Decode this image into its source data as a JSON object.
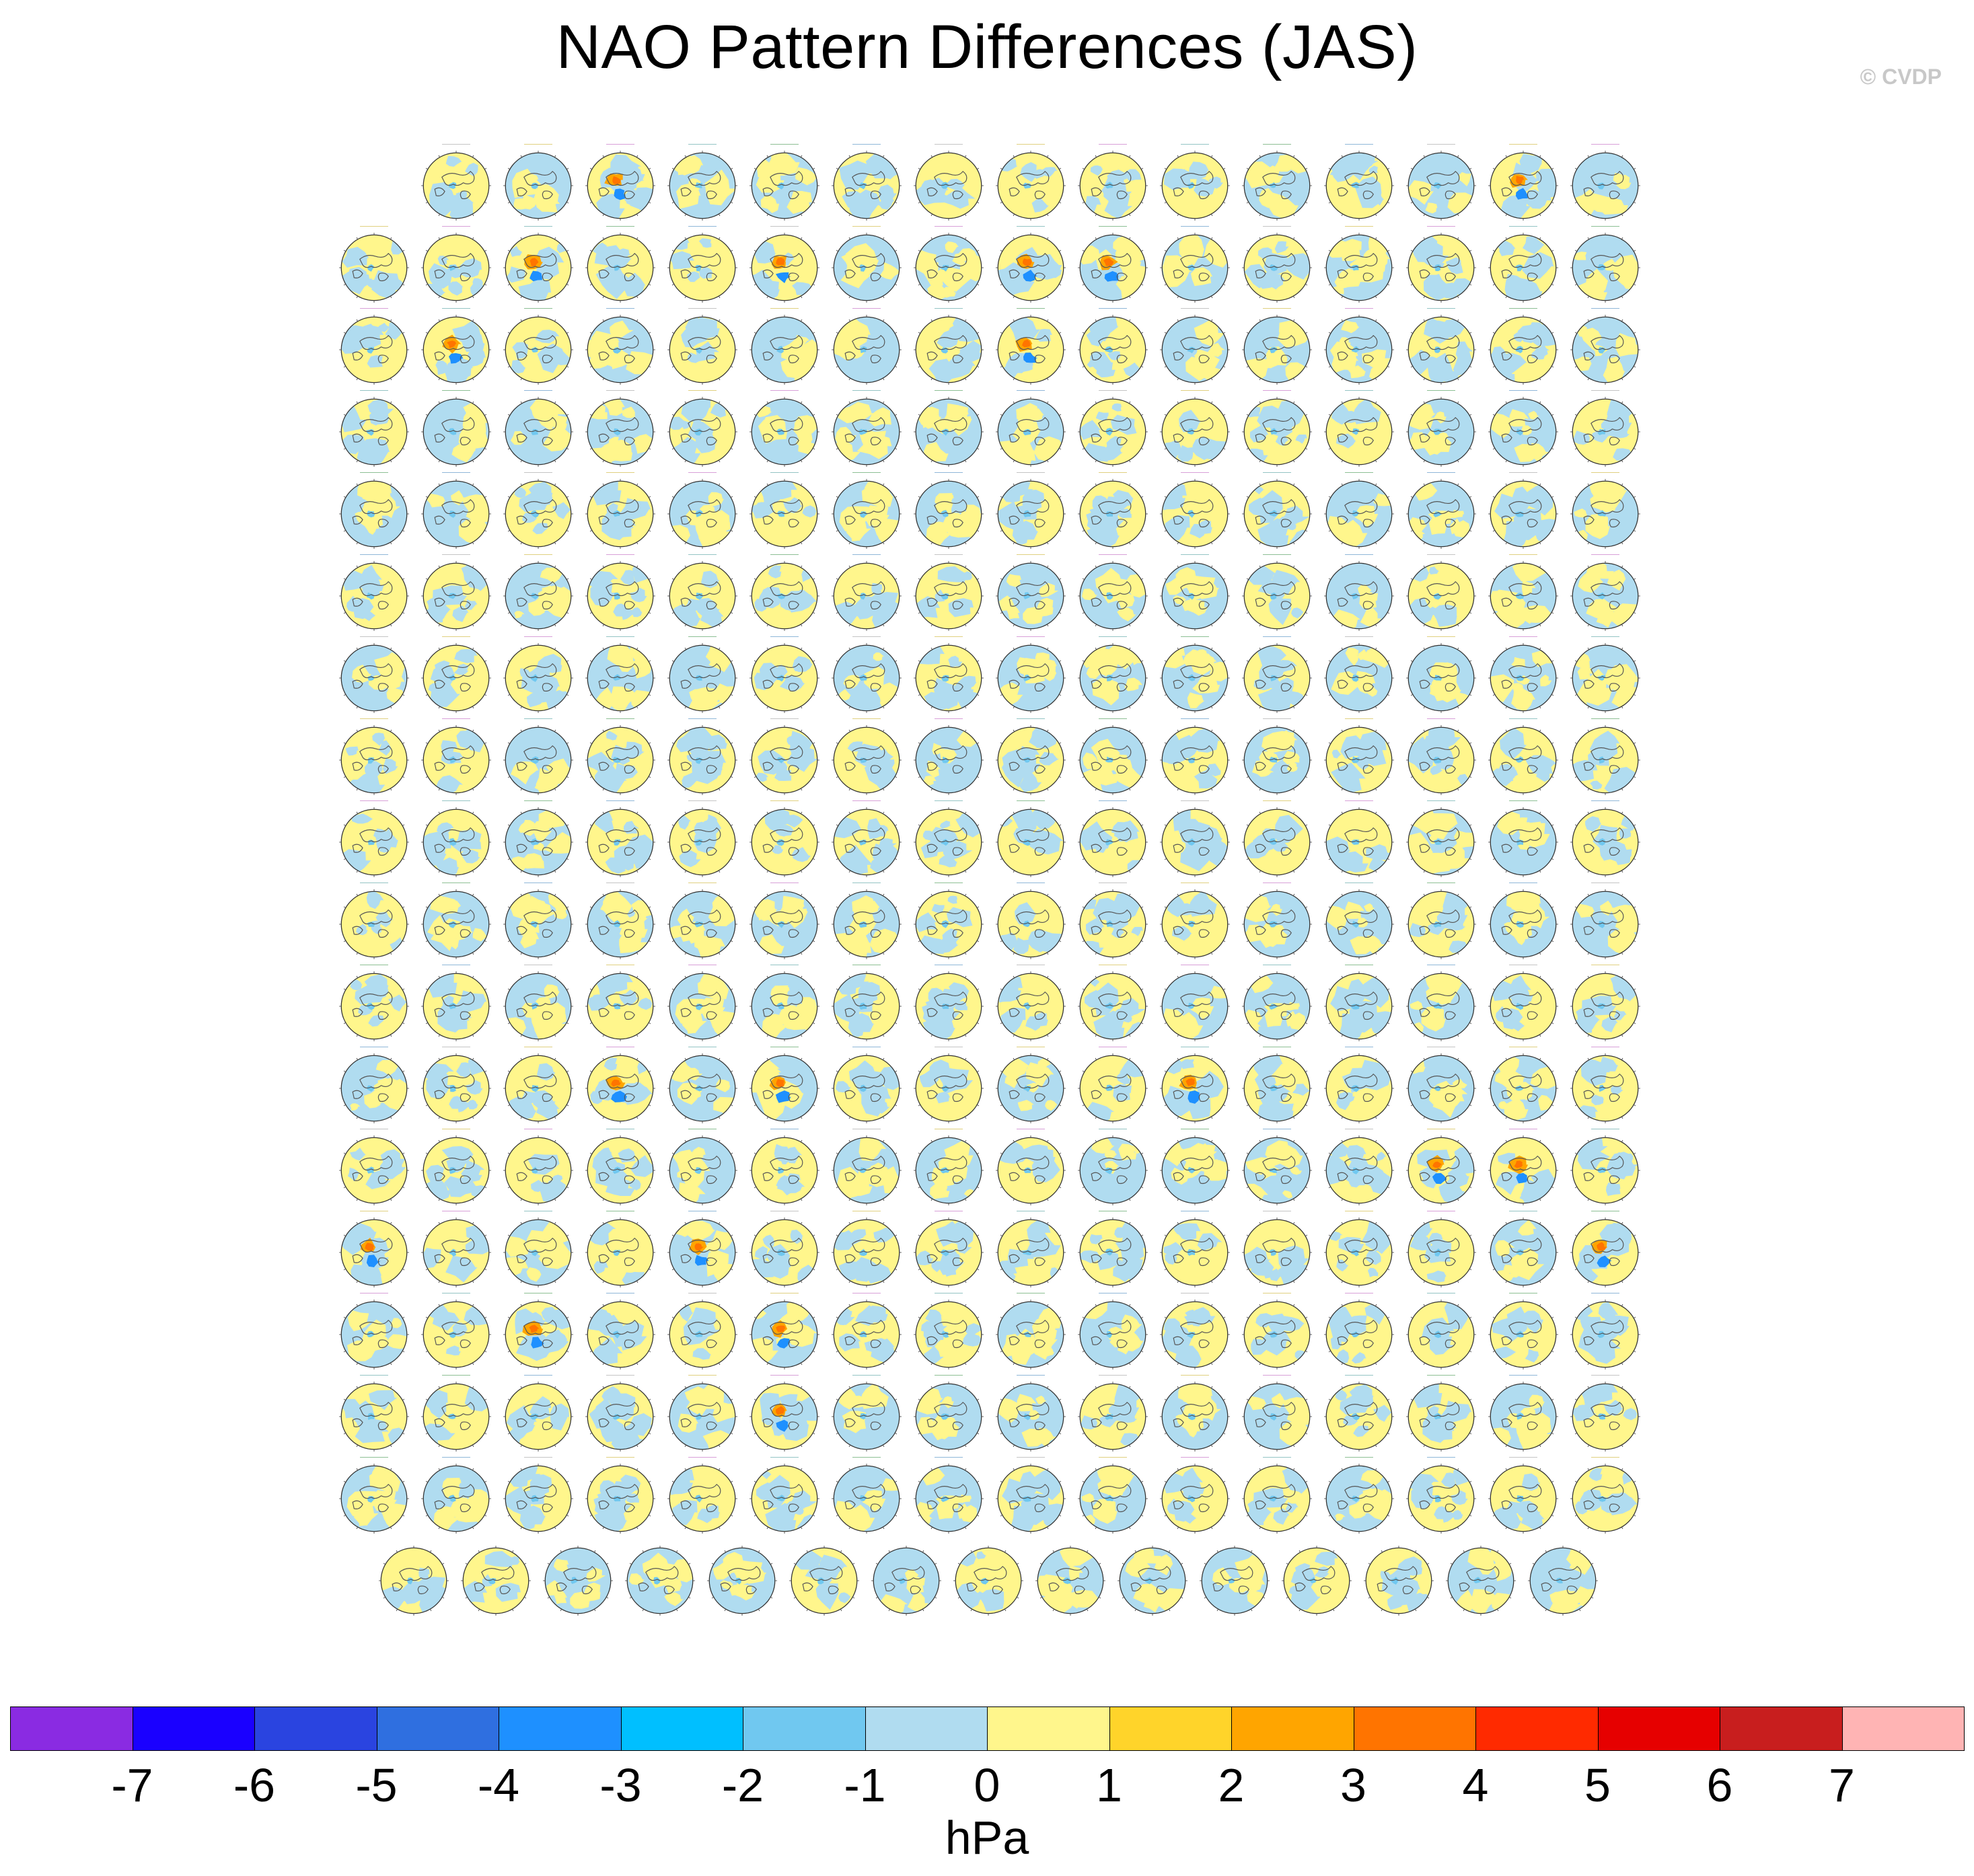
{
  "title": "NAO Pattern Differences (JAS)",
  "copyright": "© CVDP",
  "colorbar": {
    "units": "hPa",
    "tick_labels": [
      "-7",
      "-6",
      "-5",
      "-4",
      "-3",
      "-2",
      "-1",
      "0",
      "1",
      "2",
      "3",
      "4",
      "5",
      "6",
      "7"
    ],
    "colors": [
      "#8a2be2",
      "#1a00ff",
      "#2a44e0",
      "#2f6fe0",
      "#1e90ff",
      "#00bfff",
      "#70c8f0",
      "#b0dcf0",
      "#fff68c",
      "#ffd42a",
      "#ffa500",
      "#ff7400",
      "#ff2a00",
      "#e60000",
      "#c81e1e",
      "#ffb4b4"
    ]
  },
  "chart_data": {
    "type": "heatmap",
    "title": "NAO Pattern Differences (JAS)",
    "description_units": "hPa",
    "colorbar_range": [
      -7,
      7
    ],
    "colorbar_interval": 1,
    "layout": {
      "rows": 18,
      "panels_per_row": [
        15,
        16,
        16,
        16,
        16,
        16,
        16,
        16,
        16,
        16,
        16,
        16,
        16,
        16,
        16,
        16,
        16,
        15
      ],
      "total_panels": 286
    },
    "panel_type": "north-polar stereographic SLP difference map",
    "highlighted_panels": [
      {
        "row": 1,
        "col": 3
      },
      {
        "row": 1,
        "col": 14
      },
      {
        "row": 2,
        "col": 3
      },
      {
        "row": 2,
        "col": 6
      },
      {
        "row": 2,
        "col": 9
      },
      {
        "row": 2,
        "col": 10
      },
      {
        "row": 3,
        "col": 2
      },
      {
        "row": 3,
        "col": 9
      },
      {
        "row": 12,
        "col": 4
      },
      {
        "row": 12,
        "col": 6
      },
      {
        "row": 12,
        "col": 11
      },
      {
        "row": 13,
        "col": 14
      },
      {
        "row": 13,
        "col": 15
      },
      {
        "row": 14,
        "col": 1
      },
      {
        "row": 14,
        "col": 5
      },
      {
        "row": 14,
        "col": 16
      },
      {
        "row": 15,
        "col": 3
      },
      {
        "row": 15,
        "col": 6
      },
      {
        "row": 16,
        "col": 6
      }
    ]
  }
}
